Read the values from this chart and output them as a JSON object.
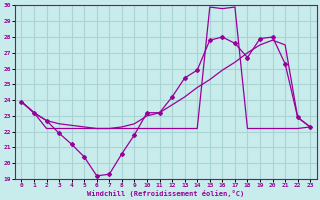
{
  "xlabel": "Windchill (Refroidissement éolien,°C)",
  "background_color": "#c8ecec",
  "grid_color": "#aad4d4",
  "line_color": "#990099",
  "xlim": [
    -0.5,
    23.5
  ],
  "ylim": [
    19,
    30
  ],
  "xticks": [
    0,
    1,
    2,
    3,
    4,
    5,
    6,
    7,
    8,
    9,
    10,
    11,
    12,
    13,
    14,
    15,
    16,
    17,
    18,
    19,
    20,
    21,
    22,
    23
  ],
  "yticks": [
    19,
    20,
    21,
    22,
    23,
    24,
    25,
    26,
    27,
    28,
    29,
    30
  ],
  "series1_x": [
    0,
    1,
    2,
    3,
    4,
    5,
    6,
    7,
    8,
    9,
    10,
    11,
    12,
    13,
    14,
    15,
    16,
    17,
    18,
    19,
    20,
    21,
    22,
    23
  ],
  "series1_y": [
    23.9,
    23.2,
    22.7,
    22.5,
    22.4,
    22.3,
    22.2,
    22.2,
    22.3,
    22.5,
    23.0,
    23.2,
    23.7,
    24.2,
    24.8,
    25.3,
    25.9,
    26.4,
    27.0,
    27.5,
    27.8,
    27.5,
    22.9,
    22.3
  ],
  "series2_x": [
    0,
    1,
    2,
    3,
    4,
    5,
    6,
    7,
    8,
    9,
    10,
    11,
    12,
    13,
    14,
    15,
    16,
    17,
    18,
    19,
    20,
    21,
    22,
    23
  ],
  "series2_y": [
    23.9,
    23.2,
    22.7,
    21.9,
    21.2,
    20.4,
    19.2,
    19.3,
    20.6,
    21.8,
    23.2,
    23.2,
    24.2,
    25.4,
    25.9,
    27.8,
    28.0,
    27.6,
    26.7,
    27.9,
    28.0,
    26.3,
    22.9,
    22.3
  ],
  "series3_x": [
    0,
    1,
    2,
    3,
    4,
    5,
    6,
    7,
    8,
    9,
    10,
    11,
    12,
    13,
    14,
    15,
    16,
    17,
    18,
    19,
    20,
    21,
    22,
    23
  ],
  "series3_y": [
    23.9,
    23.2,
    22.2,
    22.2,
    22.2,
    22.2,
    22.2,
    22.2,
    22.2,
    22.2,
    22.2,
    22.2,
    22.2,
    22.2,
    22.2,
    29.9,
    29.8,
    29.9,
    22.2,
    22.2,
    22.2,
    22.2,
    22.2,
    22.3
  ]
}
